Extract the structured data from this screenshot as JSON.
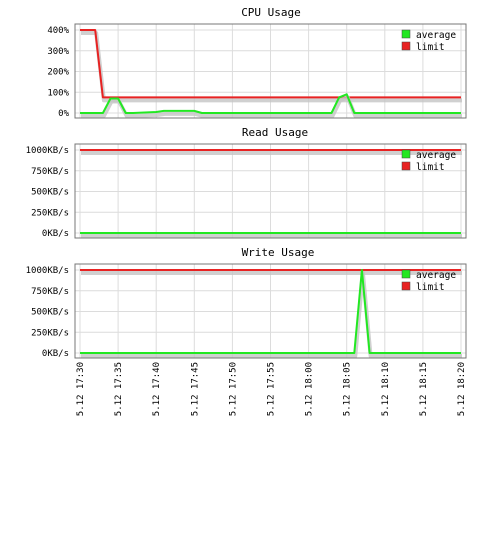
{
  "colors": {
    "average": "#22e822",
    "limit": "#e82222",
    "grid": "#dcdcdc",
    "frame": "#777777",
    "shadow": "#c4c4c4"
  },
  "legend": {
    "average": "average",
    "limit": "limit"
  },
  "x_labels": [
    "5.12 17:30",
    "5.12 17:35",
    "5.12 17:40",
    "5.12 17:45",
    "5.12 17:50",
    "5.12 17:55",
    "5.12 18:00",
    "5.12 18:05",
    "5.12 18:10",
    "5.12 18:15",
    "5.12 18:20"
  ],
  "chart_data": [
    {
      "type": "line",
      "title": "CPU Usage",
      "ylim": [
        0,
        400
      ],
      "y_ticks": [
        0,
        100,
        200,
        300,
        400
      ],
      "y_tick_labels": [
        "0%",
        "100%",
        "200%",
        "300%",
        "400%"
      ],
      "x_range_minutes": [
        0,
        50
      ],
      "legend_position": "top-right",
      "grid": true,
      "series": [
        {
          "name": "average",
          "x": [
            0,
            3,
            4,
            5,
            6,
            7,
            10,
            11,
            15,
            16,
            33,
            34,
            35,
            36,
            50
          ],
          "y": [
            0,
            0,
            70,
            70,
            0,
            0,
            5,
            10,
            10,
            0,
            0,
            75,
            90,
            0,
            0
          ]
        },
        {
          "name": "limit",
          "x": [
            0,
            2,
            3,
            50
          ],
          "y": [
            400,
            400,
            75,
            75
          ]
        }
      ]
    },
    {
      "type": "line",
      "title": "Read Usage",
      "ylim": [
        0,
        1000
      ],
      "y_ticks": [
        0,
        250,
        500,
        750,
        1000
      ],
      "y_tick_labels": [
        "0KB/s",
        "250KB/s",
        "500KB/s",
        "750KB/s",
        "1000KB/s"
      ],
      "x_range_minutes": [
        0,
        50
      ],
      "legend_position": "top-right",
      "grid": true,
      "series": [
        {
          "name": "average",
          "x": [
            0,
            50
          ],
          "y": [
            0,
            0
          ]
        },
        {
          "name": "limit",
          "x": [
            0,
            50
          ],
          "y": [
            1000,
            1000
          ]
        }
      ]
    },
    {
      "type": "line",
      "title": "Write Usage",
      "ylim": [
        0,
        1000
      ],
      "y_ticks": [
        0,
        250,
        500,
        750,
        1000
      ],
      "y_tick_labels": [
        "0KB/s",
        "250KB/s",
        "500KB/s",
        "750KB/s",
        "1000KB/s"
      ],
      "x_range_minutes": [
        0,
        50
      ],
      "legend_position": "top-right",
      "grid": true,
      "series": [
        {
          "name": "average",
          "x": [
            0,
            36,
            37,
            38,
            50
          ],
          "y": [
            0,
            0,
            1000,
            0,
            0
          ]
        },
        {
          "name": "limit",
          "x": [
            0,
            50
          ],
          "y": [
            1000,
            1000
          ]
        }
      ]
    }
  ]
}
